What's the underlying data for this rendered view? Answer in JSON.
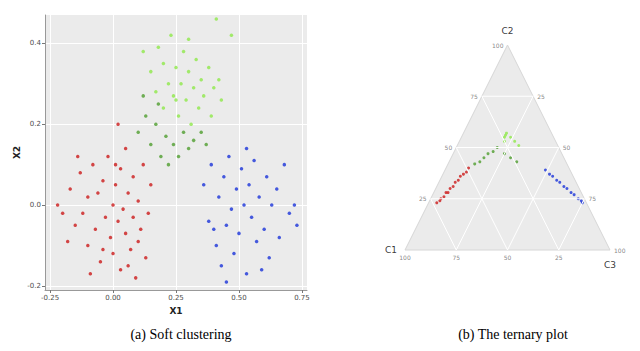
{
  "chart_data": [
    {
      "type": "scatter",
      "title": "(a) Soft clustering",
      "x_label": "X1",
      "y_label": "X2",
      "xlim": [
        -0.27,
        0.77
      ],
      "xticks": [
        -0.25,
        {
          "value": 0,
          "label": "0.00"
        },
        0.25,
        {
          "value": 0.5,
          "label": "0.50"
        },
        0.75
      ],
      "ylim": [
        -0.21,
        0.47
      ],
      "yticks": [
        -0.2,
        {
          "value": 0,
          "label": "0.0"
        },
        0.2,
        0.4
      ],
      "grid": true,
      "series": [
        {
          "color": "#cc1a1a",
          "values": [
            [
              -0.22,
              0.0
            ],
            [
              -0.2,
              -0.02
            ],
            [
              -0.17,
              0.04
            ],
            [
              -0.15,
              -0.05
            ],
            [
              -0.13,
              0.08
            ],
            [
              -0.12,
              -0.02
            ],
            [
              -0.1,
              0.02
            ],
            [
              -0.1,
              -0.1
            ],
            [
              -0.08,
              0.1
            ],
            [
              -0.07,
              -0.06
            ],
            [
              -0.06,
              0.03
            ],
            [
              -0.05,
              -0.14
            ],
            [
              -0.04,
              0.06
            ],
            [
              -0.03,
              -0.03
            ],
            [
              -0.02,
              0.12
            ],
            [
              -0.01,
              -0.08
            ],
            [
              0.0,
              0.0
            ],
            [
              0.0,
              -0.12
            ],
            [
              0.01,
              0.05
            ],
            [
              0.02,
              -0.04
            ],
            [
              0.03,
              0.09
            ],
            [
              0.03,
              -0.16
            ],
            [
              0.04,
              -0.01
            ],
            [
              0.05,
              0.14
            ],
            [
              0.05,
              -0.07
            ],
            [
              0.06,
              0.03
            ],
            [
              0.07,
              -0.11
            ],
            [
              0.08,
              0.07
            ],
            [
              0.08,
              -0.03
            ],
            [
              0.09,
              -0.18
            ],
            [
              0.1,
              0.01
            ],
            [
              0.11,
              -0.06
            ],
            [
              0.12,
              0.1
            ],
            [
              0.13,
              -0.13
            ],
            [
              0.14,
              -0.02
            ],
            [
              0.15,
              0.05
            ],
            [
              -0.14,
              0.12
            ],
            [
              -0.09,
              -0.17
            ],
            [
              0.02,
              0.2
            ],
            [
              -0.18,
              -0.09
            ],
            [
              0.06,
              -0.15
            ],
            [
              0.1,
              -0.09
            ],
            [
              -0.04,
              -0.11
            ],
            [
              0.01,
              0.1
            ]
          ]
        },
        {
          "color": "#8ee84a",
          "values": [
            [
              0.12,
              0.38
            ],
            [
              0.15,
              0.33
            ],
            [
              0.17,
              0.28
            ],
            [
              0.18,
              0.39
            ],
            [
              0.2,
              0.35
            ],
            [
              0.2,
              0.24
            ],
            [
              0.22,
              0.3
            ],
            [
              0.23,
              0.42
            ],
            [
              0.24,
              0.27
            ],
            [
              0.25,
              0.34
            ],
            [
              0.26,
              0.22
            ],
            [
              0.27,
              0.3
            ],
            [
              0.28,
              0.38
            ],
            [
              0.29,
              0.26
            ],
            [
              0.3,
              0.33
            ],
            [
              0.31,
              0.2
            ],
            [
              0.32,
              0.29
            ],
            [
              0.33,
              0.36
            ],
            [
              0.34,
              0.24
            ],
            [
              0.35,
              0.31
            ],
            [
              0.36,
              0.27
            ],
            [
              0.38,
              0.34
            ],
            [
              0.39,
              0.22
            ],
            [
              0.4,
              0.29
            ],
            [
              0.42,
              0.31
            ],
            [
              0.43,
              0.26
            ],
            [
              0.41,
              0.46
            ],
            [
              0.47,
              0.42
            ],
            [
              0.25,
              0.26
            ],
            [
              0.3,
              0.41
            ]
          ]
        },
        {
          "color": "#4f9e2e",
          "values": [
            [
              0.1,
              0.18
            ],
            [
              0.13,
              0.22
            ],
            [
              0.15,
              0.15
            ],
            [
              0.17,
              0.2
            ],
            [
              0.19,
              0.12
            ],
            [
              0.21,
              0.17
            ],
            [
              0.22,
              0.1
            ],
            [
              0.24,
              0.15
            ],
            [
              0.26,
              0.12
            ],
            [
              0.28,
              0.18
            ],
            [
              0.3,
              0.14
            ],
            [
              0.32,
              0.16
            ],
            [
              0.35,
              0.18
            ],
            [
              0.37,
              0.15
            ],
            [
              0.12,
              0.27
            ],
            [
              0.18,
              0.25
            ]
          ]
        },
        {
          "color": "#1a33d9",
          "values": [
            [
              0.36,
              0.05
            ],
            [
              0.38,
              -0.04
            ],
            [
              0.39,
              0.1
            ],
            [
              0.41,
              -0.1
            ],
            [
              0.42,
              0.02
            ],
            [
              0.43,
              -0.15
            ],
            [
              0.44,
              0.07
            ],
            [
              0.45,
              -0.05
            ],
            [
              0.46,
              0.12
            ],
            [
              0.47,
              -0.01
            ],
            [
              0.48,
              -0.12
            ],
            [
              0.49,
              0.04
            ],
            [
              0.5,
              -0.07
            ],
            [
              0.51,
              0.09
            ],
            [
              0.52,
              0.0
            ],
            [
              0.53,
              -0.17
            ],
            [
              0.54,
              0.05
            ],
            [
              0.55,
              -0.03
            ],
            [
              0.56,
              0.11
            ],
            [
              0.57,
              -0.09
            ],
            [
              0.58,
              0.02
            ],
            [
              0.6,
              -0.06
            ],
            [
              0.61,
              0.07
            ],
            [
              0.62,
              -0.13
            ],
            [
              0.63,
              0.0
            ],
            [
              0.65,
              0.04
            ],
            [
              0.66,
              -0.08
            ],
            [
              0.68,
              0.1
            ],
            [
              0.7,
              -0.02
            ],
            [
              0.73,
              -0.05
            ],
            [
              0.72,
              0.0
            ],
            [
              0.53,
              0.14
            ],
            [
              0.45,
              -0.19
            ],
            [
              0.59,
              -0.16
            ],
            [
              0.4,
              -0.06
            ]
          ]
        }
      ]
    },
    {
      "type": "ternary",
      "title": "(b) The ternary plot",
      "axes": [
        "C1",
        "C2",
        "C3"
      ],
      "lim": [
        0,
        100
      ],
      "ticks": [
        25,
        50,
        75,
        100
      ],
      "grid": true,
      "series": [
        {
          "color": "#cc1a1a",
          "values": [
            [
              73,
              23,
              4
            ],
            [
              71,
              24,
              5
            ],
            [
              70,
              25,
              5
            ],
            [
              68,
              26,
              6
            ],
            [
              66,
              28,
              6
            ],
            [
              65,
              28,
              7
            ],
            [
              63,
              30,
              7
            ],
            [
              61,
              31,
              8
            ],
            [
              59,
              33,
              8
            ],
            [
              57,
              34,
              9
            ],
            [
              55,
              36,
              9
            ],
            [
              53,
              37,
              10
            ],
            [
              51,
              38,
              11
            ],
            [
              49,
              40,
              11
            ]
          ]
        },
        {
          "color": "#4f9e2e",
          "values": [
            [
              45,
              42,
              13
            ],
            [
              42,
              43,
              15
            ],
            [
              39,
              45,
              16
            ],
            [
              36,
              47,
              17
            ],
            [
              33,
              48,
              19
            ],
            [
              30,
              50,
              20
            ],
            [
              28,
              47,
              25
            ],
            [
              26,
              45,
              29
            ],
            [
              24,
              43,
              33
            ]
          ]
        },
        {
          "color": "#8ee84a",
          "values": [
            [
              25,
              53,
              22
            ],
            [
              24,
              55,
              21
            ],
            [
              23,
              56,
              21
            ],
            [
              22,
              57,
              21
            ],
            [
              21,
              55,
              24
            ],
            [
              20,
              53,
              27
            ],
            [
              19,
              51,
              30
            ]
          ]
        },
        {
          "color": "#1a33d9",
          "values": [
            [
              12,
              39,
              49
            ],
            [
              11,
              37,
              52
            ],
            [
              10,
              36,
              54
            ],
            [
              9,
              34,
              57
            ],
            [
              8,
              33,
              59
            ],
            [
              7,
              31,
              62
            ],
            [
              6,
              30,
              64
            ],
            [
              5,
              28,
              67
            ],
            [
              4,
              27,
              69
            ],
            [
              3,
              25,
              72
            ],
            [
              2,
              24,
              74
            ],
            [
              2,
              23,
              75
            ]
          ]
        }
      ]
    }
  ]
}
